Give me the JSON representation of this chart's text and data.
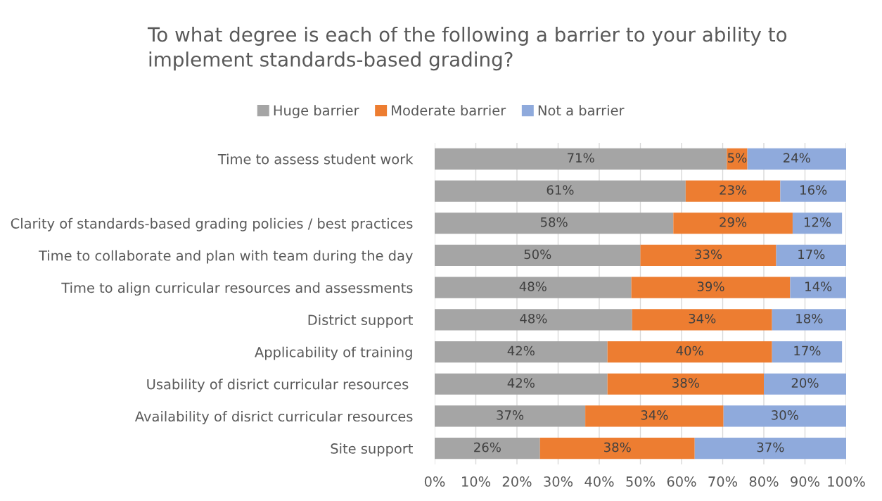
{
  "chart_data": {
    "type": "bar",
    "orientation": "horizontal",
    "stacked": true,
    "title": "To what degree is each of the following a barrier to your ability to implement standards-based grading?",
    "categories": [
      "Time to assess student work",
      null,
      "Clarity of standards-based grading policies / best practices",
      "Time to collaborate and plan with team during the day",
      "Time to align curricular resources and assessments",
      "District support",
      "Applicability of training",
      "Usability of disrict curricular resources ",
      "Availability of disrict curricular resources",
      "Site support"
    ],
    "series": [
      {
        "name": "Huge barrier",
        "color": "#a5a5a5",
        "values": [
          71,
          61,
          58,
          50,
          47.8,
          48,
          42,
          42,
          36.6,
          25.6
        ],
        "value_labels": [
          "71%",
          "61%",
          "58%",
          "50%",
          "48%",
          "48%",
          "42%",
          "42%",
          "37%",
          "26%"
        ]
      },
      {
        "name": "Moderate barrier",
        "color": "#ed7d31",
        "values": [
          5,
          23,
          29,
          33,
          38.6,
          34,
          40,
          38,
          33.6,
          37.6
        ],
        "value_labels": [
          "5%",
          "23%",
          "29%",
          "33%",
          "39%",
          "34%",
          "40%",
          "38%",
          "34%",
          "38%"
        ]
      },
      {
        "name": "Not a barrier",
        "color": "#8faadc",
        "values": [
          24,
          16,
          12,
          17,
          13.6,
          18,
          17,
          20,
          29.8,
          36.8
        ],
        "value_labels": [
          "24%",
          "16%",
          "12%",
          "17%",
          "14%",
          "18%",
          "17%",
          "20%",
          "30%",
          "37%"
        ]
      }
    ],
    "xlim": [
      0,
      100
    ],
    "xticks": [
      {
        "value": 0,
        "label": "0%"
      },
      {
        "value": 10,
        "label": "10%"
      },
      {
        "value": 20,
        "label": "20%"
      },
      {
        "value": 30,
        "label": "30%"
      },
      {
        "value": 40,
        "label": "40%"
      },
      {
        "value": 50,
        "label": "50%"
      },
      {
        "value": 60,
        "label": "60%"
      },
      {
        "value": 70,
        "label": "70%"
      },
      {
        "value": 80,
        "label": "80%"
      },
      {
        "value": 90,
        "label": "90%"
      },
      {
        "value": 100,
        "label": "100%"
      }
    ],
    "grid": "x",
    "legend": "top"
  }
}
